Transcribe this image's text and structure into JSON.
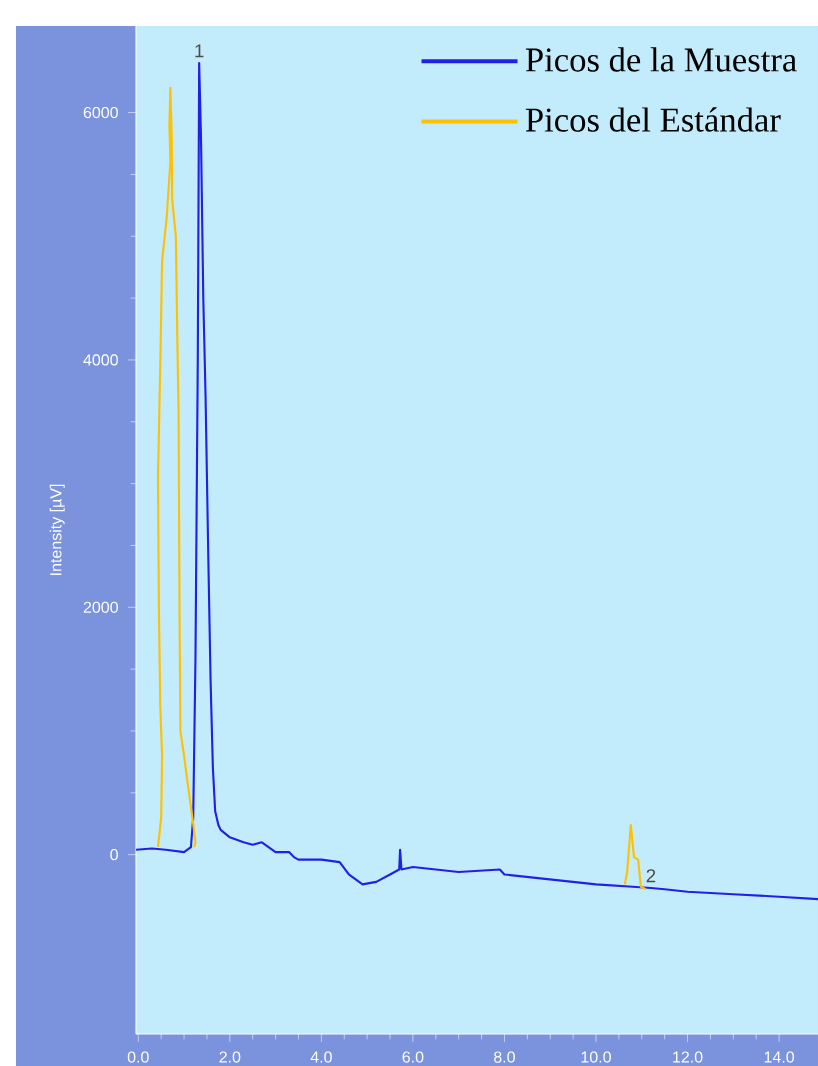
{
  "chart_data": {
    "type": "line",
    "ylabel": "Intensity [µV]",
    "xlim": [
      -0.05,
      14.85
    ],
    "ylim": [
      -1450,
      6700
    ],
    "xticks": [
      {
        "value": 0,
        "label": "0.0"
      },
      {
        "value": 2,
        "label": "2.0"
      },
      {
        "value": 4,
        "label": "4.0"
      },
      {
        "value": 6,
        "label": "6.0"
      },
      {
        "value": 8,
        "label": "8.0"
      },
      {
        "value": 10,
        "label": "10.0"
      },
      {
        "value": 12,
        "label": "12.0"
      },
      {
        "value": 14,
        "label": "14.0"
      }
    ],
    "yticks": [
      0,
      2000,
      4000,
      6000
    ],
    "grid": false,
    "legend": "top right",
    "marker": "none",
    "line_style": "solid",
    "series": [
      {
        "name": "Picos de la Muestra",
        "color": "#2020e8",
        "x": [
          -0.05,
          0.3,
          0.6,
          1.0,
          1.15,
          1.2,
          1.25,
          1.3,
          1.33,
          1.37,
          1.42,
          1.47,
          1.53,
          1.58,
          1.63,
          1.68,
          1.75,
          1.8,
          2.0,
          2.3,
          2.5,
          2.7,
          3.0,
          3.3,
          3.4,
          3.5,
          4.0,
          4.4,
          4.6,
          4.9,
          5.2,
          5.5,
          5.7,
          5.72,
          5.75,
          6.0,
          7.0,
          7.9,
          8.0,
          9.0,
          10.0,
          10.8,
          11.2,
          11.5,
          12.0,
          13.0,
          14.0,
          14.85
        ],
        "values": [
          40,
          50,
          40,
          20,
          60,
          300,
          1600,
          4000,
          6400,
          5800,
          4500,
          3700,
          2400,
          1400,
          700,
          350,
          240,
          200,
          140,
          100,
          80,
          100,
          20,
          20,
          -20,
          -40,
          -40,
          -60,
          -160,
          -240,
          -220,
          -160,
          -120,
          40,
          -120,
          -100,
          -140,
          -120,
          -160,
          -200,
          -240,
          -260,
          -270,
          -280,
          -300,
          -320,
          -340,
          -360
        ]
      },
      {
        "name": "Picos del Estándar",
        "color": "#ffc000",
        "x": [
          0.43,
          0.5,
          0.52,
          0.48,
          0.45,
          0.43,
          0.48,
          0.52,
          0.62,
          0.7,
          0.68,
          0.7,
          0.73,
          0.74,
          0.82,
          0.86,
          0.88,
          0.9,
          0.92,
          1.0,
          1.07,
          1.2,
          1.25,
          1.22,
          null,
          10.63,
          10.68,
          10.76,
          10.83,
          10.92,
          10.98,
          11.09
        ],
        "values": [
          60,
          300,
          800,
          1200,
          2000,
          3050,
          3950,
          4800,
          5150,
          5600,
          5900,
          6200,
          5800,
          5300,
          5000,
          4000,
          3600,
          2000,
          1000,
          800,
          600,
          250,
          100,
          60,
          null,
          -240,
          -140,
          240,
          -20,
          -40,
          -260,
          -280
        ]
      }
    ],
    "annotations": [
      {
        "text": "1",
        "x": 1.33,
        "y": 6400
      },
      {
        "text": "2",
        "x": 11.2,
        "y": -270
      }
    ]
  }
}
